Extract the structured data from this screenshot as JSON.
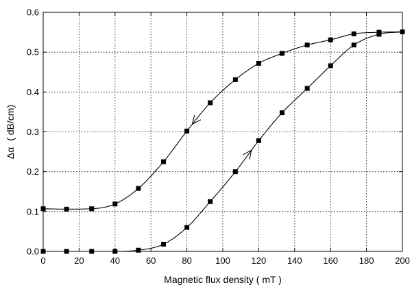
{
  "chart_data": {
    "type": "line",
    "title": "",
    "xlabel": "Magnetic flux density ( mT )",
    "ylabel_prefix": "Δα",
    "ylabel_unit": "( dB/cm)",
    "xlim": [
      0,
      200
    ],
    "ylim": [
      0.0,
      0.6
    ],
    "x_ticks": [
      0,
      20,
      40,
      60,
      80,
      100,
      120,
      140,
      160,
      180,
      200
    ],
    "x_tick_labels": [
      "0",
      "20",
      "40",
      "60",
      "80",
      "100",
      "120",
      "140",
      "160",
      "180",
      "200"
    ],
    "y_ticks": [
      0.0,
      0.1,
      0.2,
      0.3,
      0.4,
      0.5,
      0.6
    ],
    "y_tick_labels": [
      "0.0",
      "0.1",
      "0.2",
      "0.3",
      "0.4",
      "0.5",
      "0.6"
    ],
    "grid": true,
    "grid_style": "dotted",
    "legend": "none",
    "marker": "square",
    "colors": {
      "line": "#000000",
      "marker": "#000000",
      "grid": "#000000"
    },
    "series": [
      {
        "direction": "decreasing",
        "arrow_direction": "down-left",
        "arrow_at_x": 83,
        "x": [
          0,
          13,
          27,
          40,
          53,
          67,
          80,
          93,
          107,
          120,
          133,
          147,
          160,
          173,
          187,
          200
        ],
        "y": [
          0.107,
          0.106,
          0.107,
          0.119,
          0.158,
          0.225,
          0.302,
          0.373,
          0.431,
          0.472,
          0.497,
          0.518,
          0.531,
          0.546,
          0.55,
          0.551
        ]
      },
      {
        "direction": "increasing",
        "arrow_direction": "up-right",
        "arrow_at_x": 116,
        "x": [
          0,
          13,
          27,
          40,
          53,
          67,
          80,
          93,
          107,
          120,
          133,
          147,
          160,
          173,
          187,
          200
        ],
        "y": [
          0.0,
          0.0,
          0.0,
          0.0,
          0.003,
          0.018,
          0.06,
          0.125,
          0.2,
          0.278,
          0.348,
          0.409,
          0.466,
          0.518,
          0.545,
          0.551
        ]
      }
    ]
  }
}
